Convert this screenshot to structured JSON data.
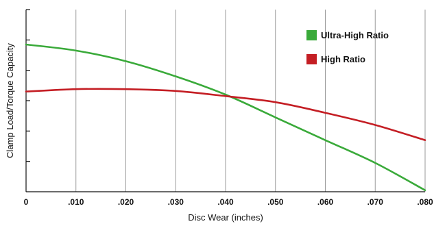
{
  "chart_data": {
    "type": "line",
    "xlabel": "Disc Wear (inches)",
    "ylabel": "Clamp Load/Torque Capacity",
    "xlim": [
      0,
      0.08
    ],
    "x_ticks": [
      {
        "value": 0.0,
        "label": "0"
      },
      {
        "value": 0.01,
        "label": ".010"
      },
      {
        "value": 0.02,
        "label": ".020"
      },
      {
        "value": 0.03,
        "label": ".030"
      },
      {
        "value": 0.04,
        "label": ".040"
      },
      {
        "value": 0.05,
        "label": ".050"
      },
      {
        "value": 0.06,
        "label": ".060"
      },
      {
        "value": 0.07,
        "label": ".070"
      },
      {
        "value": 0.08,
        "label": ".080"
      }
    ],
    "ylim": [
      0,
      6
    ],
    "y_ticks": [
      1,
      2,
      3,
      4,
      5,
      6
    ],
    "y_tick_labels_shown": false,
    "grid": "vertical",
    "legend_position": "top-right",
    "series": [
      {
        "name": "Ultra-High Ratio",
        "color": "#3aaa3a",
        "x": [
          0,
          0.01,
          0.02,
          0.03,
          0.04,
          0.05,
          0.06,
          0.07,
          0.08
        ],
        "y": [
          4.85,
          4.65,
          4.3,
          3.8,
          3.2,
          2.45,
          1.7,
          0.95,
          0.05
        ]
      },
      {
        "name": "High Ratio",
        "color": "#c41e24",
        "x": [
          0,
          0.01,
          0.02,
          0.03,
          0.04,
          0.05,
          0.06,
          0.07,
          0.08
        ],
        "y": [
          3.3,
          3.38,
          3.38,
          3.32,
          3.15,
          2.95,
          2.6,
          2.2,
          1.7
        ]
      }
    ]
  }
}
